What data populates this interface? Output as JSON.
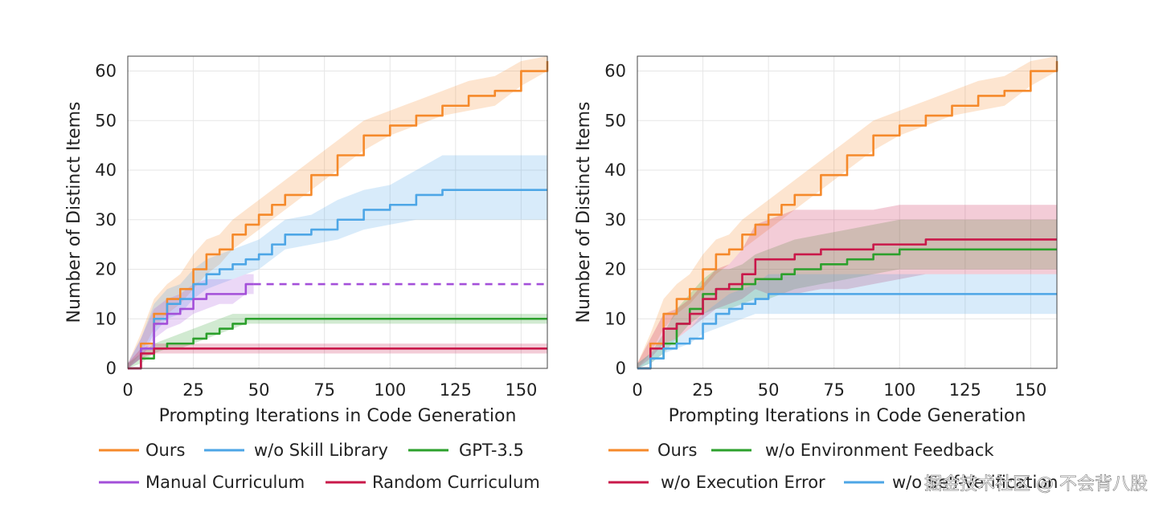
{
  "chart_data": [
    {
      "type": "line",
      "xlabel": "Prompting Iterations in Code Generation",
      "ylabel": "Number of Distinct Items",
      "xlim": [
        0,
        160
      ],
      "ylim": [
        0,
        63
      ],
      "xticks": [
        0,
        25,
        50,
        75,
        100,
        125,
        150
      ],
      "yticks": [
        0,
        10,
        20,
        30,
        40,
        50,
        60
      ],
      "grid": true,
      "legend_position": "bottom",
      "series": [
        {
          "name": "Ours",
          "color": "#f5892a",
          "x": [
            0,
            5,
            10,
            15,
            20,
            25,
            30,
            35,
            40,
            45,
            50,
            55,
            60,
            70,
            80,
            90,
            100,
            110,
            120,
            130,
            140,
            150,
            160
          ],
          "y": [
            0,
            5,
            11,
            14,
            16,
            20,
            23,
            24,
            27,
            29,
            31,
            33,
            35,
            39,
            43,
            47,
            49,
            51,
            53,
            55,
            56,
            60,
            62
          ],
          "lower": [
            0,
            3,
            8,
            11,
            13,
            16,
            19,
            21,
            24,
            26,
            28,
            30,
            32,
            36,
            40,
            44,
            47,
            49,
            51,
            52,
            53,
            57,
            60
          ],
          "upper": [
            1,
            7,
            14,
            17,
            19,
            23,
            26,
            27,
            30,
            32,
            34,
            36,
            38,
            42,
            46,
            50,
            52,
            54,
            56,
            58,
            59,
            62,
            63
          ]
        },
        {
          "name": "w/o Skill Library",
          "color": "#4da6e6",
          "x": [
            0,
            5,
            10,
            15,
            20,
            25,
            30,
            35,
            40,
            45,
            50,
            55,
            60,
            70,
            80,
            90,
            100,
            110,
            120,
            130,
            140,
            150,
            160
          ],
          "y": [
            0,
            4,
            10,
            13,
            14,
            17,
            19,
            20,
            21,
            22,
            23,
            25,
            27,
            28,
            30,
            32,
            33,
            35,
            36,
            36,
            36,
            36,
            36
          ],
          "lower": [
            0,
            2,
            7,
            10,
            11,
            14,
            16,
            17,
            18,
            19,
            20,
            22,
            24,
            25,
            26,
            28,
            29,
            30,
            30,
            30,
            30,
            30,
            30
          ],
          "upper": [
            1,
            6,
            13,
            16,
            17,
            20,
            22,
            23,
            24,
            25,
            26,
            28,
            30,
            31,
            34,
            36,
            37,
            40,
            43,
            43,
            43,
            43,
            43
          ]
        },
        {
          "name": "GPT-3.5",
          "color": "#2ca02c",
          "x": [
            0,
            5,
            10,
            15,
            20,
            25,
            30,
            35,
            40,
            45,
            50,
            55,
            60,
            70,
            80,
            90,
            100,
            110,
            120,
            130,
            140,
            150,
            160
          ],
          "y": [
            0,
            2,
            4,
            5,
            5,
            6,
            7,
            8,
            9,
            10,
            10,
            10,
            10,
            10,
            10,
            10,
            10,
            10,
            10,
            10,
            10,
            10,
            10
          ],
          "lower": [
            0,
            1,
            3,
            4,
            4,
            5,
            6,
            7,
            8,
            9,
            9,
            9,
            9,
            9,
            9,
            9,
            9,
            9,
            9,
            9,
            9,
            9,
            9
          ],
          "upper": [
            1,
            3,
            5,
            6,
            7,
            8,
            9,
            10,
            11,
            11,
            11,
            11,
            11,
            11,
            11,
            11,
            11,
            11,
            11,
            11,
            11,
            11,
            11
          ]
        },
        {
          "name": "Manual Curriculum",
          "color": "#a34fd9",
          "x": [
            0,
            5,
            10,
            15,
            20,
            25,
            30,
            35,
            40,
            45,
            48
          ],
          "y": [
            0,
            4,
            9,
            11,
            12,
            14,
            15,
            15,
            15,
            17,
            17
          ],
          "lower": [
            0,
            2,
            6,
            8,
            9,
            11,
            12,
            13,
            13,
            15,
            15
          ],
          "upper": [
            1,
            6,
            12,
            14,
            15,
            17,
            18,
            18,
            18,
            19,
            19
          ],
          "dashed_extension": {
            "x": [
              48,
              160
            ],
            "y": [
              17,
              17
            ]
          }
        },
        {
          "name": "Random Curriculum",
          "color": "#c9184a",
          "x": [
            0,
            5,
            10,
            15,
            20,
            30,
            40,
            60,
            80,
            100,
            120,
            140,
            160
          ],
          "y": [
            0,
            3,
            4,
            4,
            4,
            4,
            4,
            4,
            4,
            4,
            4,
            4,
            4
          ],
          "lower": [
            0,
            2,
            3,
            3,
            3,
            3,
            3,
            3,
            3,
            3,
            3,
            3,
            3
          ],
          "upper": [
            1,
            4,
            5,
            5,
            5,
            5,
            5,
            5,
            5,
            5,
            5,
            5,
            5
          ]
        }
      ]
    },
    {
      "type": "line",
      "xlabel": "Prompting Iterations in Code Generation",
      "ylabel": "Number of Distinct Items",
      "xlim": [
        0,
        160
      ],
      "ylim": [
        0,
        63
      ],
      "xticks": [
        0,
        25,
        50,
        75,
        100,
        125,
        150
      ],
      "yticks": [
        0,
        10,
        20,
        30,
        40,
        50,
        60
      ],
      "grid": true,
      "legend_position": "bottom",
      "series": [
        {
          "name": "Ours",
          "color": "#f5892a",
          "x": [
            0,
            5,
            10,
            15,
            20,
            25,
            30,
            35,
            40,
            45,
            50,
            55,
            60,
            70,
            80,
            90,
            100,
            110,
            120,
            130,
            140,
            150,
            160
          ],
          "y": [
            0,
            5,
            11,
            14,
            16,
            20,
            23,
            24,
            27,
            29,
            31,
            33,
            35,
            39,
            43,
            47,
            49,
            51,
            53,
            55,
            56,
            60,
            62
          ],
          "lower": [
            0,
            3,
            8,
            11,
            13,
            16,
            19,
            21,
            24,
            26,
            28,
            30,
            32,
            36,
            40,
            44,
            47,
            49,
            51,
            52,
            53,
            57,
            60
          ],
          "upper": [
            1,
            7,
            14,
            17,
            19,
            23,
            26,
            27,
            30,
            32,
            34,
            36,
            38,
            42,
            46,
            50,
            52,
            54,
            56,
            58,
            59,
            62,
            63
          ]
        },
        {
          "name": "w/o Environment Feedback",
          "color": "#2ca02c",
          "x": [
            0,
            5,
            10,
            15,
            20,
            25,
            30,
            35,
            40,
            45,
            50,
            55,
            60,
            70,
            80,
            90,
            100,
            110,
            120,
            130,
            140,
            150,
            160
          ],
          "y": [
            0,
            2,
            5,
            9,
            12,
            15,
            16,
            16,
            17,
            18,
            18,
            19,
            20,
            21,
            22,
            23,
            24,
            24,
            24,
            24,
            24,
            24,
            24
          ],
          "lower": [
            0,
            1,
            3,
            6,
            9,
            11,
            12,
            12,
            13,
            14,
            14,
            15,
            16,
            17,
            18,
            19,
            20,
            20,
            20,
            20,
            20,
            20,
            20
          ],
          "upper": [
            1,
            3,
            7,
            12,
            15,
            18,
            20,
            20,
            21,
            23,
            24,
            25,
            26,
            27,
            28,
            29,
            30,
            30,
            30,
            30,
            30,
            30,
            30
          ]
        },
        {
          "name": "w/o Execution Error",
          "color": "#c9184a",
          "x": [
            0,
            5,
            10,
            15,
            20,
            25,
            30,
            35,
            40,
            45,
            50,
            55,
            60,
            70,
            80,
            90,
            100,
            110,
            120,
            130,
            140,
            150,
            160
          ],
          "y": [
            0,
            4,
            8,
            9,
            11,
            14,
            16,
            17,
            19,
            22,
            22,
            22,
            23,
            24,
            24,
            25,
            25,
            26,
            26,
            26,
            26,
            26,
            26
          ],
          "lower": [
            0,
            2,
            5,
            6,
            8,
            10,
            12,
            13,
            14,
            16,
            15,
            15,
            15,
            16,
            16,
            17,
            18,
            19,
            19,
            19,
            19,
            19,
            19
          ],
          "upper": [
            1,
            6,
            11,
            12,
            14,
            17,
            20,
            21,
            24,
            29,
            30,
            31,
            32,
            32,
            32,
            32,
            33,
            33,
            33,
            33,
            33,
            33,
            33
          ]
        },
        {
          "name": "w/o Self-Verification",
          "color": "#4da6e6",
          "x": [
            0,
            5,
            10,
            15,
            20,
            25,
            30,
            35,
            40,
            45,
            50,
            55,
            60,
            70,
            80,
            90,
            100,
            110,
            120,
            130,
            140,
            150,
            160
          ],
          "y": [
            0,
            2,
            4,
            5,
            6,
            9,
            11,
            12,
            13,
            14,
            15,
            15,
            15,
            15,
            15,
            15,
            15,
            15,
            15,
            15,
            15,
            15,
            15
          ],
          "lower": [
            0,
            1,
            3,
            4,
            5,
            7,
            8,
            9,
            10,
            11,
            11,
            11,
            11,
            11,
            11,
            11,
            11,
            11,
            11,
            11,
            11,
            11,
            11
          ],
          "upper": [
            1,
            3,
            5,
            6,
            8,
            11,
            13,
            15,
            16,
            17,
            19,
            19,
            19,
            19,
            19,
            19,
            19,
            19,
            19,
            19,
            19,
            19,
            19
          ]
        }
      ]
    }
  ],
  "legends": [
    {
      "rows": [
        [
          "Ours",
          "w/o Skill Library",
          "GPT-3.5"
        ],
        [
          "Manual Curriculum",
          "Random Curriculum"
        ]
      ]
    },
    {
      "rows": [
        [
          "Ours",
          "w/o Environment Feedback"
        ],
        [
          "w/o Execution Error",
          "w/o Self-Verification"
        ]
      ]
    }
  ],
  "watermark": "掘金技术社区 @ 不会背八股"
}
